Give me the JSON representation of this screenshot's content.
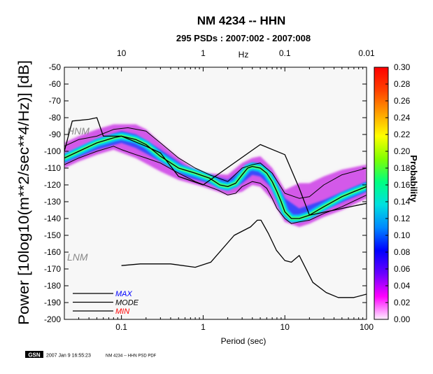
{
  "title": "NM 4234 -- HHN",
  "subtitle": "295 PSDs : 2007:002 - 2007:008",
  "footer": {
    "logo_text": "GSN",
    "timestamp": "2007 Jan  9 16:55:23",
    "caption": "NM 4234 -- HHN PSD PDF"
  },
  "colors": {
    "background": "#ffffff",
    "plot_background": "#f7f7f7",
    "nlnm_nhnm": "#000000",
    "mode": "#000000",
    "max": "#000000",
    "min": "#000000",
    "legend_max_text": "#0000ff",
    "legend_mode_text": "#000000",
    "legend_min_text": "#ff0000",
    "model_label": "#888888"
  },
  "chart_data": {
    "type": "heatmap",
    "title": "NM 4234 -- HHN",
    "subtitle": "295 PSDs : 2007:002 - 2007:008",
    "xlabel": "Period (sec)",
    "x2label": "Hz",
    "ylabel": "Power [10log10(m**2/sec**4/Hz)] [dB]",
    "x_scale": "log",
    "xlim": [
      0.02,
      100
    ],
    "ylim": [
      -200,
      -50
    ],
    "x_ticks": [
      {
        "value": 0.1,
        "label": "0.1"
      },
      {
        "value": 1,
        "label": "1"
      },
      {
        "value": 10,
        "label": "10"
      },
      {
        "value": 100,
        "label": "100"
      }
    ],
    "x2_ticks": [
      {
        "value": 0.1,
        "label": "10"
      },
      {
        "value": 1,
        "label": "1"
      },
      {
        "value": 10,
        "label": "0.1"
      },
      {
        "value": 100,
        "label": "0.01"
      }
    ],
    "y_ticks": [
      -50,
      -60,
      -70,
      -80,
      -90,
      -100,
      -110,
      -120,
      -130,
      -140,
      -150,
      -160,
      -170,
      -180,
      -190,
      -200
    ],
    "colorbar": {
      "label": "Probability",
      "min": 0.0,
      "max": 0.3,
      "ticks": [
        0.0,
        0.02,
        0.04,
        0.06,
        0.08,
        0.1,
        0.12,
        0.14,
        0.16,
        0.18,
        0.2,
        0.22,
        0.24,
        0.26,
        0.28,
        0.3
      ],
      "tick_labels": [
        "0.00",
        "0.02",
        "0.04",
        "0.06",
        "0.08",
        "0.10",
        "0.12",
        "0.14",
        "0.16",
        "0.18",
        "0.20",
        "0.22",
        "0.24",
        "0.26",
        "0.28",
        "0.30"
      ],
      "gradient_hex": [
        "#fff0ff",
        "#ff00ff",
        "#6a00ff",
        "#0000ff",
        "#0088ff",
        "#00e0e0",
        "#00ff80",
        "#80ff00",
        "#ffff00",
        "#ffa000",
        "#ff4000",
        "#ff0000"
      ]
    },
    "model_labels": [
      "HNM",
      "LNM"
    ],
    "series": [
      {
        "name": "MODE",
        "points": [
          [
            0.02,
            -104
          ],
          [
            0.03,
            -100
          ],
          [
            0.05,
            -95
          ],
          [
            0.08,
            -92
          ],
          [
            0.1,
            -91
          ],
          [
            0.15,
            -93
          ],
          [
            0.2,
            -96
          ],
          [
            0.3,
            -103
          ],
          [
            0.5,
            -110
          ],
          [
            0.8,
            -113
          ],
          [
            1.2,
            -116
          ],
          [
            1.6,
            -120
          ],
          [
            2.0,
            -121
          ],
          [
            2.5,
            -119
          ],
          [
            3.0,
            -114
          ],
          [
            3.5,
            -110
          ],
          [
            4.0,
            -109
          ],
          [
            5.0,
            -110
          ],
          [
            6.0,
            -113
          ],
          [
            7.0,
            -118
          ],
          [
            8.0,
            -124
          ],
          [
            9.0,
            -130
          ],
          [
            10,
            -136
          ],
          [
            12,
            -140
          ],
          [
            15,
            -140
          ],
          [
            20,
            -138
          ],
          [
            30,
            -133
          ],
          [
            50,
            -127
          ],
          [
            70,
            -124
          ],
          [
            100,
            -121
          ]
        ]
      },
      {
        "name": "MAX",
        "points": [
          [
            0.02,
            -97
          ],
          [
            0.03,
            -93
          ],
          [
            0.05,
            -91
          ],
          [
            0.08,
            -87
          ],
          [
            0.12,
            -86
          ],
          [
            0.2,
            -88
          ],
          [
            0.3,
            -95
          ],
          [
            0.5,
            -104
          ],
          [
            0.8,
            -110
          ],
          [
            1.2,
            -114
          ],
          [
            2.0,
            -118
          ],
          [
            3.0,
            -110
          ],
          [
            4.0,
            -108
          ],
          [
            5.0,
            -107
          ],
          [
            7.0,
            -113
          ],
          [
            10,
            -125
          ],
          [
            15,
            -128
          ],
          [
            20,
            -127
          ],
          [
            30,
            -120
          ],
          [
            50,
            -114
          ],
          [
            100,
            -110
          ]
        ]
      },
      {
        "name": "MIN",
        "points": [
          [
            0.02,
            -108
          ],
          [
            0.03,
            -104
          ],
          [
            0.05,
            -100
          ],
          [
            0.08,
            -97
          ],
          [
            0.1,
            -99
          ],
          [
            0.15,
            -102
          ],
          [
            0.2,
            -104
          ],
          [
            0.3,
            -107
          ],
          [
            0.5,
            -113
          ],
          [
            0.8,
            -118
          ],
          [
            1.5,
            -123
          ],
          [
            2.0,
            -126
          ],
          [
            2.5,
            -125
          ],
          [
            3.0,
            -121
          ],
          [
            4.0,
            -118
          ],
          [
            5.0,
            -119
          ],
          [
            6.0,
            -122
          ],
          [
            7.0,
            -128
          ],
          [
            8.0,
            -134
          ],
          [
            10,
            -140
          ],
          [
            12,
            -143
          ],
          [
            15,
            -142
          ],
          [
            20,
            -141
          ],
          [
            30,
            -137
          ],
          [
            50,
            -133
          ],
          [
            100,
            -126
          ]
        ]
      },
      {
        "name": "NHNM",
        "points": [
          [
            0.02,
            -100
          ],
          [
            0.025,
            -82
          ],
          [
            0.04,
            -81
          ],
          [
            0.05,
            -80
          ],
          [
            0.06,
            -91
          ],
          [
            0.1,
            -91
          ],
          [
            0.2,
            -97
          ],
          [
            0.3,
            -101
          ],
          [
            0.5,
            -115
          ],
          [
            1,
            -120
          ],
          [
            5,
            -96
          ],
          [
            10,
            -102
          ],
          [
            15,
            -122
          ],
          [
            20,
            -138
          ],
          [
            100,
            -131
          ]
        ]
      },
      {
        "name": "NLNM",
        "points": [
          [
            0.1,
            -168
          ],
          [
            0.17,
            -167
          ],
          [
            0.4,
            -167
          ],
          [
            0.8,
            -169
          ],
          [
            1.24,
            -166
          ],
          [
            2.4,
            -150
          ],
          [
            3.8,
            -145
          ],
          [
            4.6,
            -141
          ],
          [
            5.1,
            -141
          ],
          [
            6.3,
            -149
          ],
          [
            7.9,
            -159
          ],
          [
            10,
            -165
          ],
          [
            12,
            -166
          ],
          [
            15,
            -162
          ],
          [
            22,
            -178
          ],
          [
            32,
            -184
          ],
          [
            45,
            -187
          ],
          [
            70,
            -187
          ],
          [
            100,
            -185
          ]
        ]
      }
    ],
    "density_band": {
      "outer": {
        "upper": [
          [
            0.02,
            -95
          ],
          [
            0.03,
            -91
          ],
          [
            0.05,
            -87
          ],
          [
            0.08,
            -84
          ],
          [
            0.15,
            -84
          ],
          [
            0.2,
            -87
          ],
          [
            0.3,
            -95
          ],
          [
            0.5,
            -104
          ],
          [
            0.8,
            -111
          ],
          [
            1.0,
            -113
          ],
          [
            2.0,
            -114
          ],
          [
            3.0,
            -107
          ],
          [
            4.0,
            -104
          ],
          [
            5.0,
            -103
          ],
          [
            7.0,
            -110
          ],
          [
            10,
            -123
          ],
          [
            15,
            -119
          ],
          [
            20,
            -119
          ],
          [
            30,
            -115
          ],
          [
            50,
            -111
          ],
          [
            100,
            -108
          ]
        ],
        "lower": [
          [
            0.02,
            -110
          ],
          [
            0.03,
            -106
          ],
          [
            0.05,
            -102
          ],
          [
            0.08,
            -99
          ],
          [
            0.15,
            -104
          ],
          [
            0.3,
            -112
          ],
          [
            0.5,
            -117
          ],
          [
            1.0,
            -121
          ],
          [
            2.0,
            -126
          ],
          [
            3.0,
            -124
          ],
          [
            4.0,
            -120
          ],
          [
            5.0,
            -121
          ],
          [
            7.0,
            -129
          ],
          [
            10,
            -142
          ],
          [
            15,
            -145
          ],
          [
            20,
            -143
          ],
          [
            30,
            -139
          ],
          [
            50,
            -135
          ],
          [
            100,
            -128
          ]
        ]
      },
      "inner": {
        "upper": [
          [
            0.02,
            -102
          ],
          [
            0.05,
            -93
          ],
          [
            0.1,
            -88
          ],
          [
            0.15,
            -90
          ],
          [
            0.3,
            -99
          ],
          [
            0.6,
            -109
          ],
          [
            1.2,
            -114
          ],
          [
            2.0,
            -117
          ],
          [
            3.0,
            -111
          ],
          [
            4.0,
            -107
          ],
          [
            5.0,
            -107
          ],
          [
            7.0,
            -114
          ],
          [
            10,
            -128
          ],
          [
            15,
            -134
          ],
          [
            30,
            -129
          ],
          [
            100,
            -118
          ]
        ],
        "lower": [
          [
            0.02,
            -107
          ],
          [
            0.05,
            -99
          ],
          [
            0.1,
            -95
          ],
          [
            0.15,
            -98
          ],
          [
            0.3,
            -106
          ],
          [
            0.6,
            -115
          ],
          [
            1.2,
            -119
          ],
          [
            2.0,
            -123
          ],
          [
            3.0,
            -119
          ],
          [
            4.0,
            -114
          ],
          [
            5.0,
            -115
          ],
          [
            7.0,
            -122
          ],
          [
            10,
            -139
          ],
          [
            15,
            -142
          ],
          [
            30,
            -135
          ],
          [
            100,
            -124
          ]
        ]
      }
    }
  },
  "legend": {
    "items": [
      {
        "label": "MAX",
        "color": "#0000ff"
      },
      {
        "label": "MODE",
        "color": "#000000"
      },
      {
        "label": "MIN",
        "color": "#ff0000"
      }
    ]
  }
}
